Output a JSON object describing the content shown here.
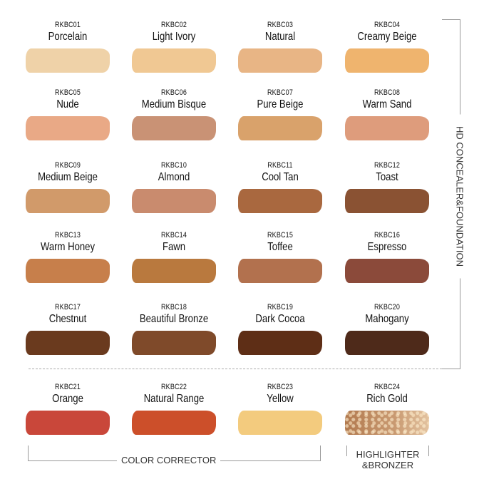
{
  "swatches": [
    {
      "code": "RKBC01",
      "name": "Porcelain",
      "color": "#efd2a8"
    },
    {
      "code": "RKBC02",
      "name": "Light Ivory",
      "color": "#f0c893"
    },
    {
      "code": "RKBC03",
      "name": "Natural",
      "color": "#e8b585"
    },
    {
      "code": "RKBC04",
      "name": "Creamy Beige",
      "color": "#efb46e"
    },
    {
      "code": "RKBC05",
      "name": "Nude",
      "color": "#e9a986"
    },
    {
      "code": "RKBC06",
      "name": "Medium Bisque",
      "color": "#c99275"
    },
    {
      "code": "RKBC07",
      "name": "Pure Beige",
      "color": "#d9a26b"
    },
    {
      "code": "RKBC08",
      "name": "Warm Sand",
      "color": "#de9c7c"
    },
    {
      "code": "RKBC09",
      "name": "Medium Beige",
      "color": "#d19a6a"
    },
    {
      "code": "RKBC10",
      "name": "Almond",
      "color": "#c98b6e"
    },
    {
      "code": "RKBC11",
      "name": "Cool Tan",
      "color": "#a9683f"
    },
    {
      "code": "RKBC12",
      "name": "Toast",
      "color": "#8a5233"
    },
    {
      "code": "RKBC13",
      "name": "Warm Honey",
      "color": "#c77f4b"
    },
    {
      "code": "RKBC14",
      "name": "Fawn",
      "color": "#b9793e"
    },
    {
      "code": "RKBC15",
      "name": "Toffee",
      "color": "#b2714e"
    },
    {
      "code": "RKBC16",
      "name": "Espresso",
      "color": "#8b4a3a"
    },
    {
      "code": "RKBC17",
      "name": "Chestnut",
      "color": "#6a3a1e"
    },
    {
      "code": "RKBC18",
      "name": "Beautiful Bronze",
      "color": "#7f4a2a"
    },
    {
      "code": "RKBC19",
      "name": "Dark Cocoa",
      "color": "#5e2e16"
    },
    {
      "code": "RKBC20",
      "name": "Mahogany",
      "color": "#4e2a1a"
    },
    {
      "code": "RKBC21",
      "name": "Orange",
      "color": "#c9473a"
    },
    {
      "code": "RKBC22",
      "name": "Natural Range",
      "color": "#cc4f2a"
    },
    {
      "code": "RKBC23",
      "name": "Yellow",
      "color": "#f3cb7e"
    },
    {
      "code": "RKBC24",
      "name": "Rich Gold",
      "color": "#c08a5e"
    }
  ],
  "groups": {
    "foundation": "HD CONCEALER&FOUNDATION",
    "corrector": "COLOR CORRECTOR",
    "highlighter_line1": "HIGHLIGHTER",
    "highlighter_line2": "&BRONZER"
  }
}
